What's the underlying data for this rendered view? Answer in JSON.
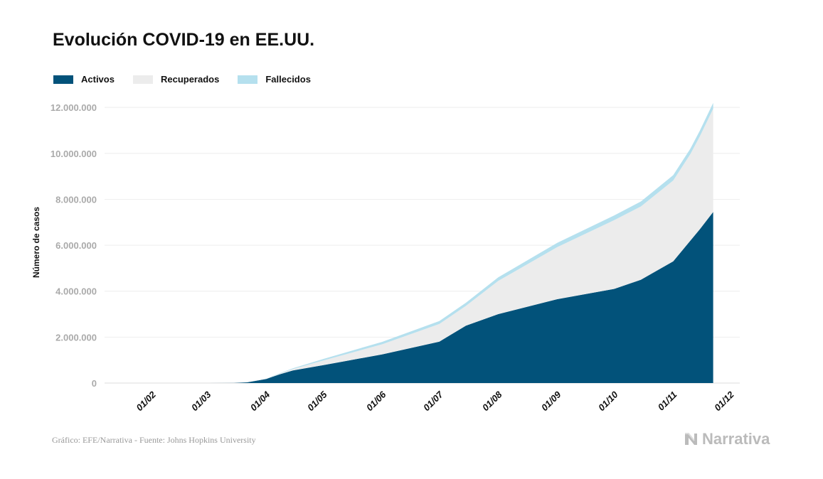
{
  "chart_data": {
    "type": "area",
    "stacked": true,
    "title": "Evolución COVID-19 en EE.UU.",
    "ylabel": "Número de casos",
    "xlabel": "",
    "ylim": [
      0,
      12500000
    ],
    "xlim": [
      "2020-01-07",
      "2020-12-06"
    ],
    "yticks": [
      0,
      2000000,
      4000000,
      6000000,
      8000000,
      10000000,
      12000000
    ],
    "ytick_labels": [
      "0",
      "2.000.000",
      "4.000.000",
      "6.000.000",
      "8.000.000",
      "10.000.000",
      "12.000.000"
    ],
    "xticks": [
      "2020-02-01",
      "2020-03-01",
      "2020-04-01",
      "2020-05-01",
      "2020-06-01",
      "2020-07-01",
      "2020-08-01",
      "2020-09-01",
      "2020-10-01",
      "2020-11-01",
      "2020-12-01"
    ],
    "xtick_labels": [
      "01/02",
      "01/03",
      "01/04",
      "01/05",
      "01/06",
      "01/07",
      "01/08",
      "01/09",
      "01/10",
      "01/11",
      "01/12"
    ],
    "grid": true,
    "legend_position": "top-left",
    "x": [
      "2020-01-22",
      "2020-03-01",
      "2020-03-15",
      "2020-03-22",
      "2020-04-01",
      "2020-04-08",
      "2020-04-15",
      "2020-05-01",
      "2020-06-01",
      "2020-07-01",
      "2020-07-15",
      "2020-08-01",
      "2020-09-01",
      "2020-10-01",
      "2020-10-15",
      "2020-11-01",
      "2020-11-10",
      "2020-11-15",
      "2020-11-22"
    ],
    "series": [
      {
        "name": "Activos",
        "color": "#02527a",
        "values": [
          0,
          50,
          3000,
          30000,
          180000,
          380000,
          550000,
          780000,
          1250000,
          1800000,
          2500000,
          3000000,
          3650000,
          4100000,
          4500000,
          5300000,
          6200000,
          6700000,
          7450000
        ]
      },
      {
        "name": "Recuperados",
        "color": "#ececec",
        "values": [
          0,
          0,
          0,
          100,
          10000,
          30000,
          60000,
          205000,
          440000,
          770000,
          860000,
          1446000,
          2266000,
          2993000,
          3188000,
          3519000,
          3765000,
          4045000,
          4494000
        ]
      },
      {
        "name": "Fallecidos",
        "color": "#b5e0ee",
        "values": [
          0,
          1,
          60,
          400,
          5000,
          14000,
          30000,
          64000,
          105000,
          128000,
          137000,
          154000,
          184000,
          207000,
          216000,
          231000,
          240000,
          247000,
          256000
        ]
      }
    ]
  },
  "footer": {
    "source": "Gráfico: EFE/Narrativa - Fuente: Johns Hopkins University"
  },
  "logo": {
    "text": "Narrativa",
    "icon": "narrativa-n-logo"
  }
}
